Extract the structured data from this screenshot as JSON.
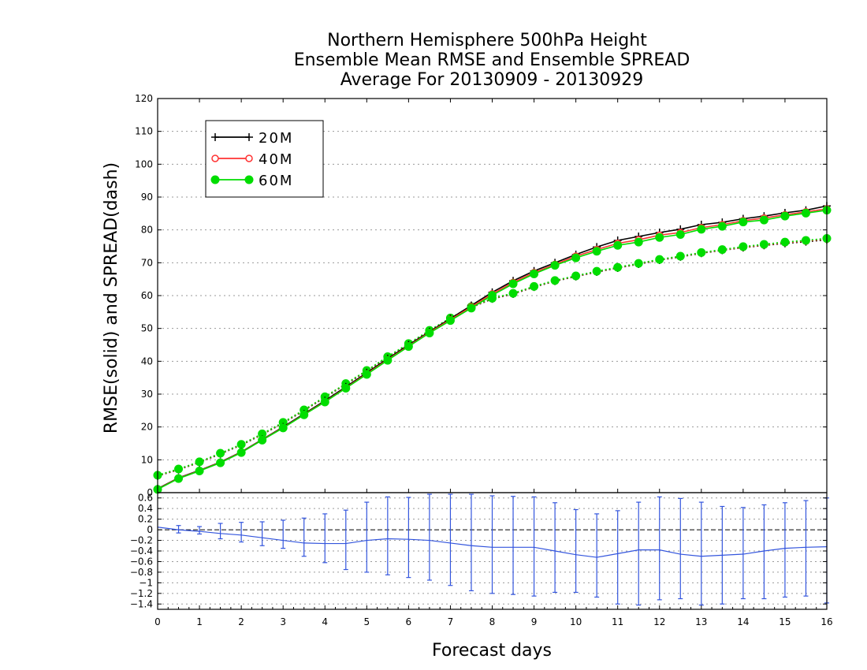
{
  "chart_data": {
    "type": "line",
    "title_lines": [
      "Northern Hemisphere 500hPa Height",
      "Ensemble Mean RMSE and Ensemble SPREAD",
      "Average For 20130909 - 20130929"
    ],
    "xlabel": "Forecast days",
    "ylabel": "RMSE(solid) and SPREAD(dash)",
    "xlim": [
      0,
      16
    ],
    "ylim": [
      0,
      120
    ],
    "x_ticks": [
      "0",
      "1",
      "2",
      "3",
      "4",
      "5",
      "6",
      "7",
      "8",
      "9",
      "10",
      "11",
      "12",
      "13",
      "14",
      "15",
      "16"
    ],
    "y_ticks": [
      "0",
      "10",
      "20",
      "30",
      "40",
      "50",
      "60",
      "70",
      "80",
      "90",
      "100",
      "110",
      "120"
    ],
    "grid": "horizontal dotted",
    "legend_position": "top-left",
    "x": [
      0,
      0.5,
      1,
      1.5,
      2,
      2.5,
      3,
      3.5,
      4,
      4.5,
      5,
      5.5,
      6,
      6.5,
      7,
      7.5,
      8,
      8.5,
      9,
      9.5,
      10,
      10.5,
      11,
      11.5,
      12,
      12.5,
      13,
      13.5,
      14,
      14.5,
      15,
      15.5,
      16
    ],
    "series": [
      {
        "name": "20M",
        "color": "#000000",
        "marker": "plus",
        "style": "solid",
        "values": [
          1.2,
          4.5,
          6.8,
          9.3,
          12.4,
          16.2,
          20.0,
          24.0,
          28.0,
          32.2,
          36.5,
          40.8,
          45.0,
          49.0,
          53.0,
          57.0,
          61.0,
          64.5,
          67.5,
          70.0,
          72.5,
          74.8,
          76.8,
          78.0,
          79.2,
          80.2,
          81.6,
          82.3,
          83.4,
          84.2,
          85.2,
          86.0,
          87.3
        ]
      },
      {
        "name": "40M",
        "color": "#ff3333",
        "marker": "circle-open",
        "style": "solid",
        "values": [
          1.1,
          4.4,
          6.7,
          9.2,
          12.3,
          16.1,
          19.8,
          23.8,
          27.7,
          31.9,
          36.2,
          40.5,
          44.7,
          48.8,
          52.7,
          56.6,
          60.5,
          64.0,
          67.0,
          69.5,
          72.0,
          74.0,
          75.9,
          77.0,
          78.4,
          79.2,
          80.7,
          81.6,
          82.8,
          83.6,
          84.6,
          85.5,
          86.4
        ]
      },
      {
        "name": "60M",
        "color": "#00dd00",
        "marker": "circle-filled",
        "style": "solid",
        "values": [
          1.0,
          4.3,
          6.6,
          9.1,
          12.2,
          16.0,
          19.7,
          23.7,
          27.6,
          31.8,
          36.0,
          40.3,
          44.5,
          48.6,
          52.4,
          56.2,
          60.1,
          63.6,
          66.6,
          69.2,
          71.5,
          73.5,
          75.3,
          76.3,
          77.7,
          78.6,
          80.2,
          81.1,
          82.4,
          83.0,
          84.2,
          85.1,
          86.0
        ]
      },
      {
        "name": "20M spread",
        "color": "#000000",
        "marker": "plus",
        "style": "dotted",
        "values": [
          5.1,
          7.0,
          9.2,
          11.8,
          14.5,
          17.7,
          21.2,
          25.0,
          29.0,
          33.0,
          37.0,
          41.2,
          45.2,
          49.2,
          53.0,
          56.4,
          59.0,
          60.5,
          62.6,
          64.4,
          65.8,
          67.2,
          68.4,
          69.6,
          70.8,
          71.8,
          72.9,
          73.8,
          74.6,
          75.3,
          75.9,
          76.4,
          77.0
        ]
      },
      {
        "name": "40M spread",
        "color": "#ff3333",
        "marker": "circle-open",
        "style": "dotted",
        "values": [
          5.2,
          7.1,
          9.3,
          11.9,
          14.6,
          17.8,
          21.3,
          25.1,
          29.1,
          33.1,
          37.1,
          41.3,
          45.3,
          49.3,
          53.1,
          56.5,
          59.1,
          60.6,
          62.7,
          64.5,
          65.9,
          67.3,
          68.5,
          69.7,
          70.9,
          71.9,
          73.0,
          73.9,
          74.7,
          75.4,
          76.1,
          76.6,
          77.2
        ]
      },
      {
        "name": "60M spread",
        "color": "#00dd00",
        "marker": "circle-filled",
        "style": "dotted",
        "values": [
          5.3,
          7.2,
          9.4,
          12.0,
          14.7,
          17.9,
          21.4,
          25.2,
          29.2,
          33.2,
          37.2,
          41.4,
          45.4,
          49.4,
          53.2,
          56.6,
          59.2,
          60.7,
          62.8,
          64.6,
          66.0,
          67.4,
          68.6,
          69.8,
          71.0,
          72.0,
          73.1,
          74.0,
          74.9,
          75.6,
          76.3,
          76.8,
          77.4
        ]
      }
    ],
    "lower_panel": {
      "ylim": [
        -1.5,
        0.7
      ],
      "y_ticks": [
        "-1.4",
        "-1.2",
        "-1",
        "-0.8",
        "-0.6",
        "-0.4",
        "-0.2",
        "0",
        "0.2",
        "0.4",
        "0.6"
      ],
      "color": "#3355dd",
      "x": [
        0,
        0.5,
        1,
        1.5,
        2,
        2.5,
        3,
        3.5,
        4,
        4.5,
        5,
        5.5,
        6,
        6.5,
        7,
        7.5,
        8,
        8.5,
        9,
        9.5,
        10,
        10.5,
        11,
        11.5,
        12,
        12.5,
        13,
        13.5,
        14,
        14.5,
        15,
        15.5,
        16
      ],
      "values": [
        0.05,
        0.0,
        -0.03,
        -0.07,
        -0.1,
        -0.15,
        -0.2,
        -0.25,
        -0.26,
        -0.26,
        -0.2,
        -0.17,
        -0.18,
        -0.2,
        -0.25,
        -0.3,
        -0.33,
        -0.33,
        -0.33,
        -0.4,
        -0.47,
        -0.52,
        -0.45,
        -0.38,
        -0.38,
        -0.46,
        -0.5,
        -0.48,
        -0.46,
        -0.4,
        -0.35,
        -0.33,
        -0.32
      ],
      "err_upper": [
        null,
        0.08,
        0.06,
        0.12,
        0.14,
        0.15,
        0.18,
        0.22,
        0.3,
        0.37,
        0.52,
        0.62,
        0.61,
        0.67,
        0.67,
        0.67,
        0.64,
        0.63,
        0.62,
        0.51,
        0.38,
        0.3,
        0.36,
        0.52,
        0.62,
        0.59,
        0.52,
        0.44,
        0.42,
        0.47,
        0.51,
        0.55,
        0.6
      ],
      "err_lower": [
        null,
        -0.06,
        -0.08,
        -0.17,
        -0.23,
        -0.3,
        -0.35,
        -0.5,
        -0.62,
        -0.75,
        -0.8,
        -0.85,
        -0.9,
        -0.95,
        -1.05,
        -1.15,
        -1.2,
        -1.22,
        -1.25,
        -1.18,
        -1.18,
        -1.27,
        -1.4,
        -1.42,
        -1.32,
        -1.3,
        -1.42,
        -1.4,
        -1.3,
        -1.3,
        -1.27,
        -1.25,
        -1.38
      ]
    }
  }
}
